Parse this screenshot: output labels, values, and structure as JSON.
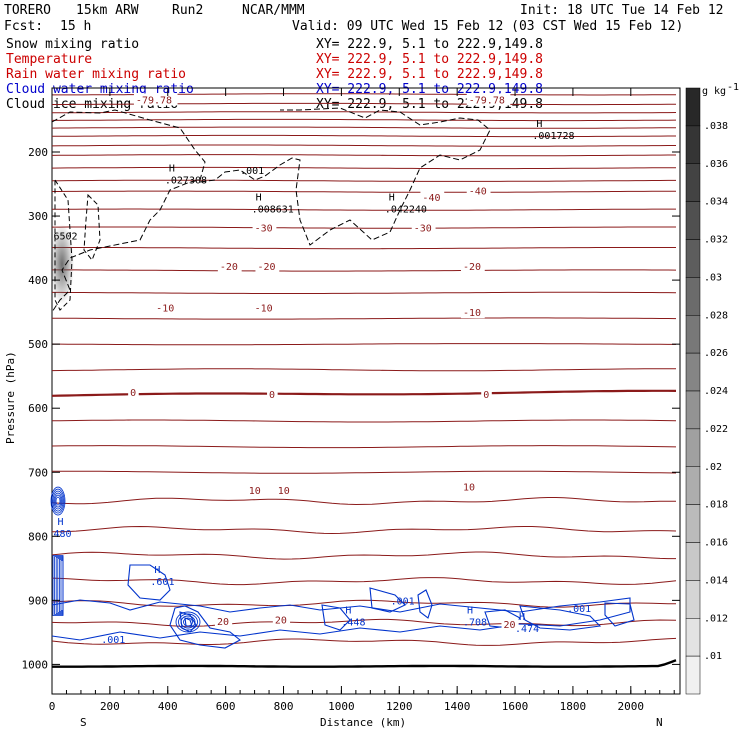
{
  "header": {
    "model": "TORERO",
    "grid": "15km ARW",
    "run": "Run2",
    "org": "NCAR/MMM",
    "init": "Init: 18 UTC Tue 14 Feb 12",
    "fcst_label": "Fcst:",
    "fcst_value": "15 h",
    "valid": "Valid: 09 UTC Wed 15 Feb 12 (03 CST Wed 15 Feb 12)"
  },
  "fields": [
    {
      "name": "Snow mixing ratio",
      "color": "#000000",
      "xy": "XY= 222.9,  5.1 to 222.9,149.8"
    },
    {
      "name": "Temperature",
      "color": "#cc0000",
      "xy": "XY= 222.9,  5.1 to 222.9,149.8"
    },
    {
      "name": "Rain water mixing ratio",
      "color": "#cc0000",
      "xy": "XY= 222.9,  5.1 to 222.9,149.8"
    },
    {
      "name": "Cloud water mixing ratio",
      "color": "#0000cc",
      "xy": "XY= 222.9,  5.1 to 222.9,149.8"
    },
    {
      "name": "Cloud ice mixing ratio",
      "color": "#000000",
      "xy": "XY= 222.9,  5.1 to 222.9,149.8"
    }
  ],
  "colors": {
    "temperature": "#8b1a1a",
    "cloud_water": "#0033cc",
    "cloud_ice": "#000000",
    "snow_shading": "#555555",
    "red_label": "#cc0000",
    "blue_label": "#0000cc"
  },
  "chart_data": {
    "type": "contour-cross-section",
    "xlabel": "Distance (km)",
    "ylabel": "Pressure (hPa)",
    "xlim": [
      0,
      2170
    ],
    "ylim": [
      1050,
      100
    ],
    "xticks": [
      "0",
      "200",
      "400",
      "600",
      "800",
      "1000",
      "1200",
      "1400",
      "1600",
      "1800",
      "2000"
    ],
    "yticks": [
      "200",
      "300",
      "400",
      "500",
      "600",
      "700",
      "800",
      "900",
      "1000"
    ],
    "x_endpoints": {
      "left": "S",
      "right": "N"
    },
    "colorbar": {
      "unit": "g kg",
      "unit_exp": "-1",
      "levels": [
        ".038",
        ".036",
        ".034",
        ".032",
        ".03",
        ".028",
        ".026",
        ".024",
        ".022",
        ".02",
        ".018",
        ".016",
        ".014",
        ".012",
        ".01"
      ]
    },
    "temperature_labels": [
      {
        "text": "-79.78",
        "x": 290,
        "p": 118
      },
      {
        "text": "-79.78",
        "x": 1440,
        "p": 118
      },
      {
        "text": "-30",
        "x": 700,
        "p": 318
      },
      {
        "text": "-30",
        "x": 1250,
        "p": 318
      },
      {
        "text": "-40",
        "x": 1280,
        "p": 270
      },
      {
        "text": "-40",
        "x": 1440,
        "p": 260
      },
      {
        "text": "-20",
        "x": 580,
        "p": 378
      },
      {
        "text": "-20",
        "x": 710,
        "p": 378
      },
      {
        "text": "-20",
        "x": 1420,
        "p": 378
      },
      {
        "text": "-10",
        "x": 360,
        "p": 443
      },
      {
        "text": "-10",
        "x": 700,
        "p": 443
      },
      {
        "text": "-10",
        "x": 1420,
        "p": 450
      },
      {
        "text": "0",
        "x": 270,
        "p": 575
      },
      {
        "text": "0",
        "x": 750,
        "p": 578
      },
      {
        "text": "0",
        "x": 1490,
        "p": 578
      },
      {
        "text": "10",
        "x": 680,
        "p": 728
      },
      {
        "text": "10",
        "x": 780,
        "p": 728
      },
      {
        "text": "10",
        "x": 1420,
        "p": 722
      },
      {
        "text": "20",
        "x": 570,
        "p": 932
      },
      {
        "text": "20",
        "x": 770,
        "p": 930
      },
      {
        "text": "20",
        "x": 1560,
        "p": 937
      }
    ],
    "maxima": [
      {
        "letter": "H",
        "value": ".027308",
        "x": 390,
        "p": 240
      },
      {
        "letter": "H",
        "value": ".008631",
        "x": 690,
        "p": 285
      },
      {
        "letter": "H",
        "value": ".042240",
        "x": 1150,
        "p": 285
      },
      {
        "letter": "H",
        "value": ".001728",
        "x": 1660,
        "p": 170
      },
      {
        "letter": "H",
        "value": ".601",
        "x": 340,
        "p": 867
      },
      {
        "letter": "H",
        "value": ".448",
        "x": 1000,
        "p": 930
      },
      {
        "letter": "H",
        "value": ".708",
        "x": 1420,
        "p": 930
      },
      {
        "letter": "H",
        "value": ".474",
        "x": 1600,
        "p": 940
      },
      {
        "letter": "H",
        "value": "480",
        "x": 5,
        "p": 792
      }
    ],
    "field_labels": [
      {
        "text": ".001",
        "x": 650,
        "p": 228
      },
      {
        "text": ".001",
        "x": 1170,
        "p": 900
      },
      {
        "text": ".001",
        "x": 1780,
        "p": 912
      },
      {
        "text": ".001",
        "x": 170,
        "p": 960
      },
      {
        "text": "6502",
        "x": 5,
        "p": 330
      }
    ]
  }
}
